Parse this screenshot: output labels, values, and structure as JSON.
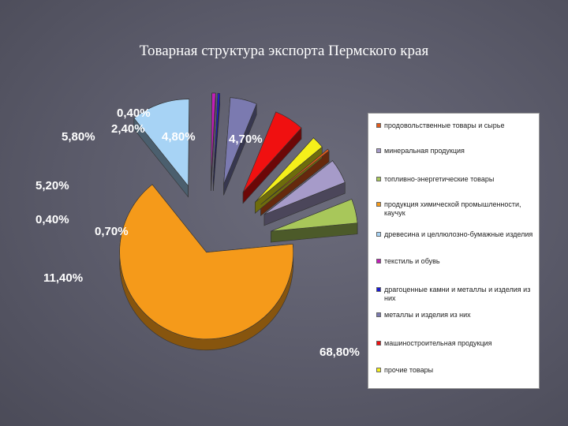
{
  "title": "Товарная структура экспорта Пермского края",
  "chart_data": {
    "type": "pie",
    "style": "3d-exploded",
    "legend_position": "right",
    "slices": [
      {
        "name": "продовольственные товары и сырье",
        "value": 0.4,
        "label": "0,40%",
        "color": "#e05a1c"
      },
      {
        "name": "минеральная продукция",
        "value": 4.8,
        "label": "4,80%",
        "color": "#a69bc9"
      },
      {
        "name": "топливно-энергетические товары",
        "value": 4.7,
        "label": "4,70%",
        "color": "#a8c75a"
      },
      {
        "name": "продукция химической промышленности, каучук",
        "value": 68.8,
        "label": "68,80%",
        "color": "#f59a1a"
      },
      {
        "name": "древесина и целлюлозно-бумажные изделия",
        "value": 11.4,
        "label": "11,40%",
        "color": "#a7d3f5"
      },
      {
        "name": "текстиль и обувь",
        "value": 0.7,
        "label": "0,70%",
        "color": "#c21eb8"
      },
      {
        "name": "драгоценные камни и металлы и изделия из них",
        "value": 0.4,
        "label": "0,40%",
        "color": "#1a1ad0"
      },
      {
        "name": "металлы и изделия из них",
        "value": 5.2,
        "label": "5,20%",
        "color": "#7b7ab0"
      },
      {
        "name": "машиностроительная продукция",
        "value": 5.8,
        "label": "5,80%",
        "color": "#f01010"
      },
      {
        "name": "прочие товары",
        "value": 2.4,
        "label": "2,40%",
        "color": "#f5f01a"
      }
    ]
  }
}
